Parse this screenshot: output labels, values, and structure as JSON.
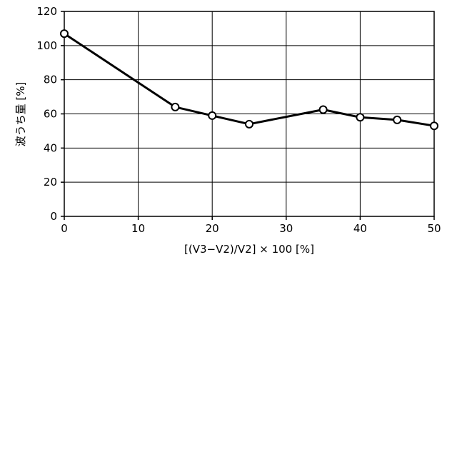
{
  "chart_data": {
    "type": "line",
    "xlabel": "[(V3−V2)/V2] × 100 [%]",
    "ylabel": "波うち量 [%]",
    "xlim": [
      0,
      50
    ],
    "ylim": [
      0,
      120
    ],
    "x_ticks": [
      0,
      10,
      20,
      30,
      40,
      50
    ],
    "y_ticks": [
      0,
      20,
      40,
      60,
      80,
      100,
      120
    ],
    "x_tick_labels": [
      "0",
      "10",
      "20",
      "30",
      "40",
      "50"
    ],
    "y_tick_labels": [
      "0",
      "20",
      "40",
      "60",
      "80",
      "100",
      "120"
    ],
    "grid": true,
    "marker": "open-circle",
    "series": [
      {
        "x": [
          0,
          15,
          20,
          25,
          35,
          40,
          45,
          50
        ],
        "values": [
          107,
          64,
          59,
          54,
          62.5,
          58,
          56.5,
          53
        ]
      }
    ]
  }
}
